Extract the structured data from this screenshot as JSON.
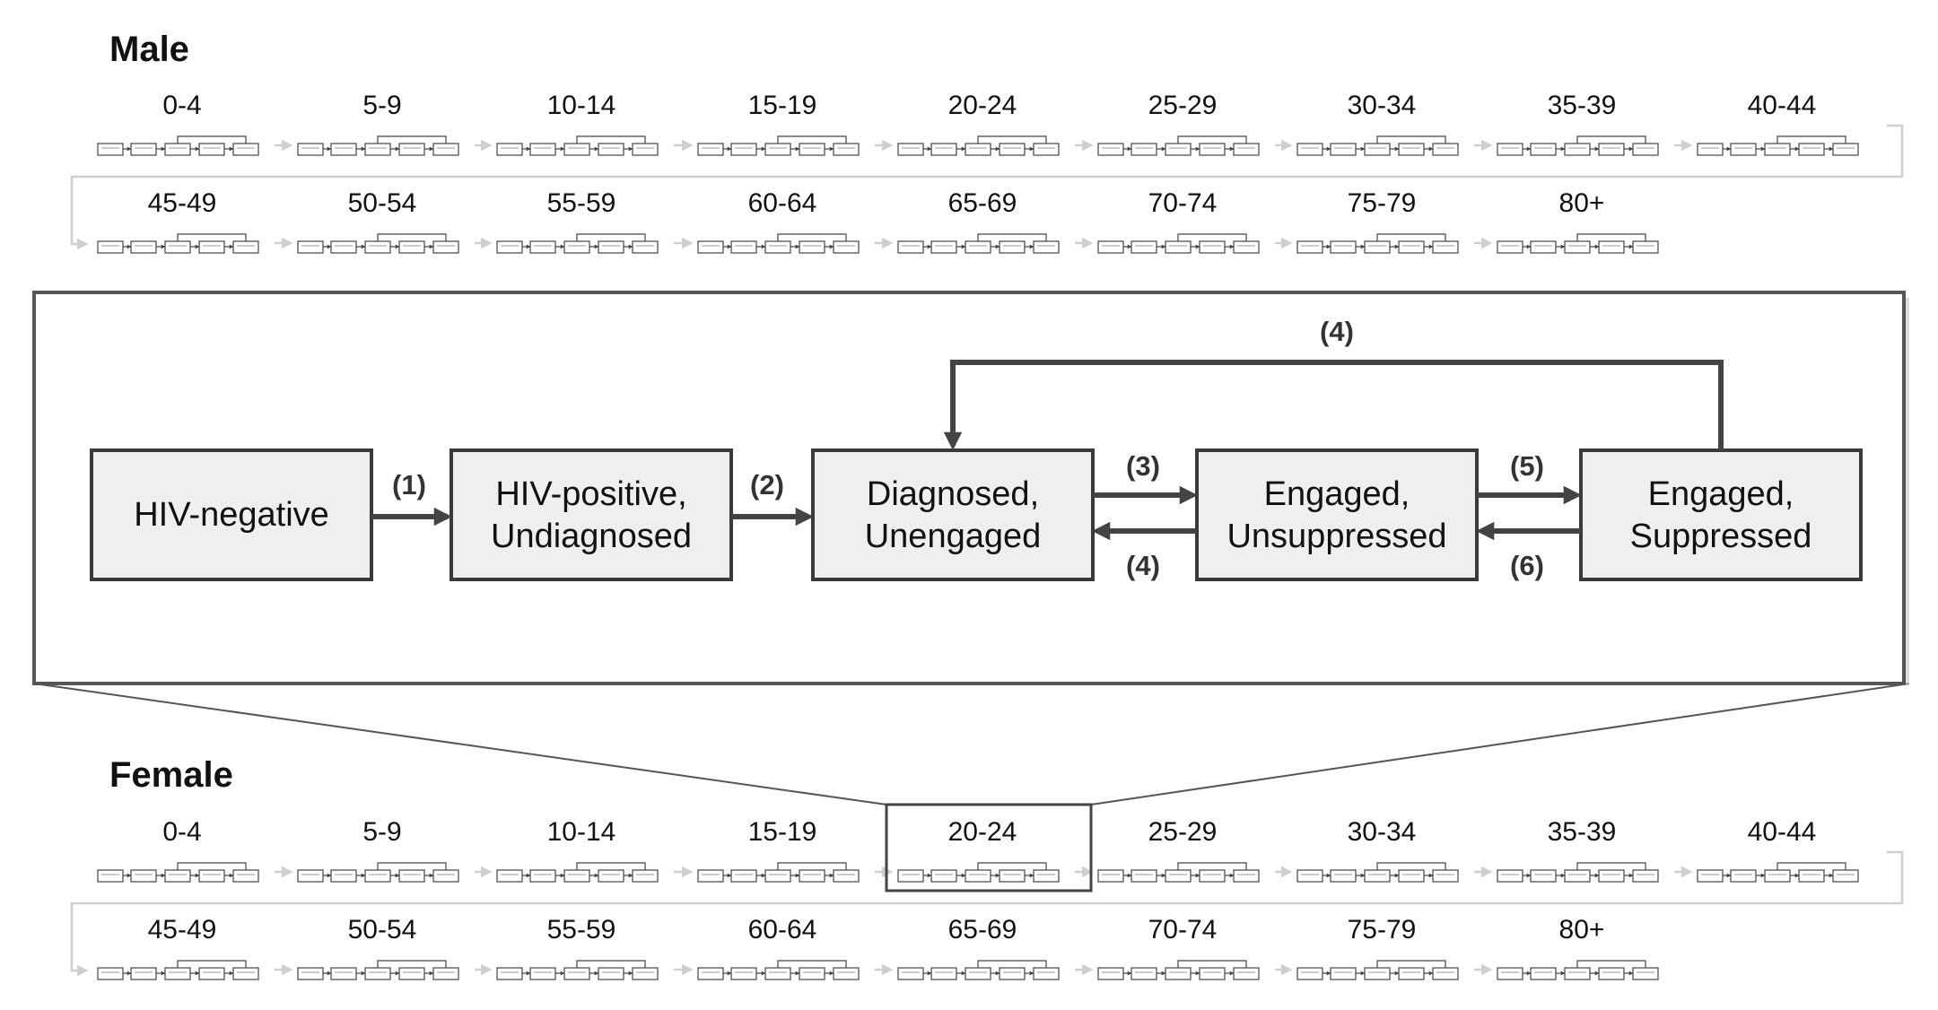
{
  "sections": [
    {
      "id": "male",
      "title": "Male"
    },
    {
      "id": "female",
      "title": "Female"
    }
  ],
  "age_groups_row1": [
    "0-4",
    "5-9",
    "10-14",
    "15-19",
    "20-24",
    "25-29",
    "30-34",
    "35-39",
    "40-44"
  ],
  "age_groups_row2": [
    "45-49",
    "50-54",
    "55-59",
    "60-64",
    "65-69",
    "70-74",
    "75-79",
    "80+"
  ],
  "highlighted_group": {
    "section": "female",
    "age": "20-24"
  },
  "states": [
    {
      "id": "hiv-negative",
      "lines": [
        "HIV-negative"
      ]
    },
    {
      "id": "hiv-positive-undiagnosed",
      "lines": [
        "HIV-positive,",
        "Undiagnosed"
      ]
    },
    {
      "id": "diagnosed-unengaged",
      "lines": [
        "Diagnosed,",
        "Unengaged"
      ]
    },
    {
      "id": "engaged-unsuppressed",
      "lines": [
        "Engaged,",
        "Unsuppressed"
      ]
    },
    {
      "id": "engaged-suppressed",
      "lines": [
        "Engaged,",
        "Suppressed"
      ]
    }
  ],
  "transitions": [
    {
      "id": "t1",
      "label": "(1)",
      "from": "hiv-negative",
      "to": "hiv-positive-undiagnosed"
    },
    {
      "id": "t2",
      "label": "(2)",
      "from": "hiv-positive-undiagnosed",
      "to": "diagnosed-unengaged"
    },
    {
      "id": "t3",
      "label": "(3)",
      "from": "diagnosed-unengaged",
      "to": "engaged-unsuppressed"
    },
    {
      "id": "t4a",
      "label": "(4)",
      "from": "engaged-unsuppressed",
      "to": "diagnosed-unengaged"
    },
    {
      "id": "t5",
      "label": "(5)",
      "from": "engaged-unsuppressed",
      "to": "engaged-suppressed"
    },
    {
      "id": "t6",
      "label": "(6)",
      "from": "engaged-suppressed",
      "to": "engaged-unsuppressed"
    },
    {
      "id": "t4b",
      "label": "(4)",
      "from": "engaged-suppressed",
      "to": "diagnosed-unengaged"
    }
  ],
  "colors": {
    "box_fill": "#efefef",
    "box_stroke": "#3a3a3a",
    "flow_arrow": "#cfcfcf",
    "text": "#111111"
  }
}
